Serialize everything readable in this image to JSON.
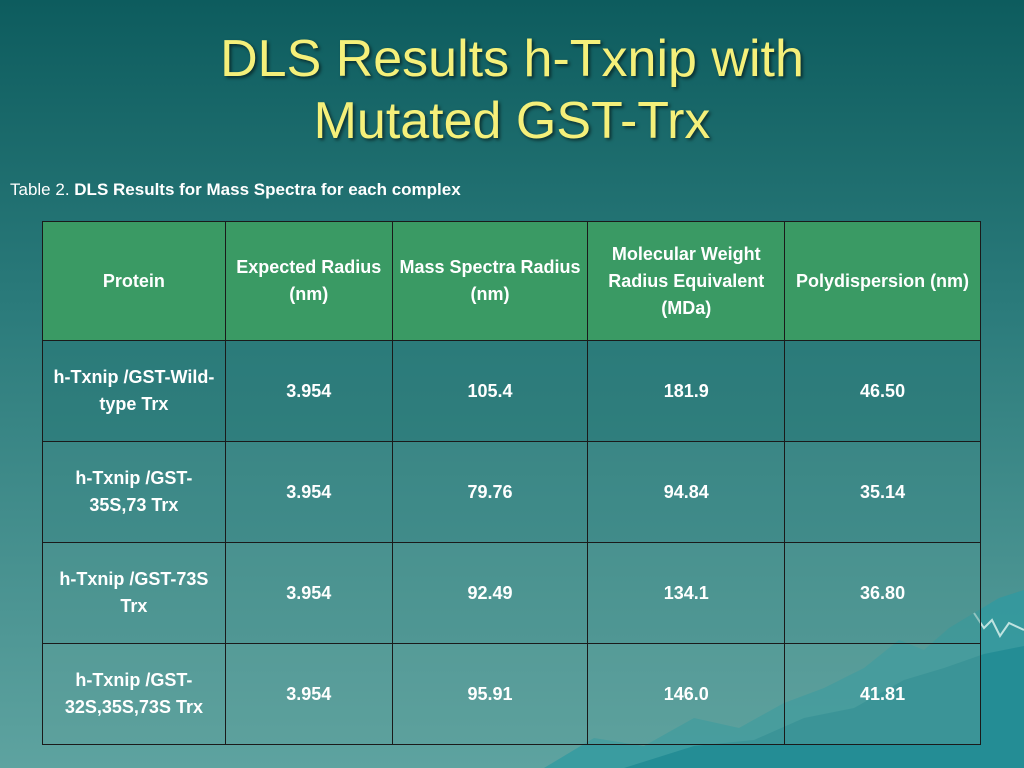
{
  "slide": {
    "title_line1": "DLS Results h-Txnip with",
    "title_line2": "Mutated GST-Trx",
    "caption_prefix": "Table 2.",
    "caption_bold": "DLS Results for Mass Spectra for each complex"
  },
  "table": {
    "headers": [
      "Protein",
      "Expected Radius (nm)",
      "Mass Spectra Radius (nm)",
      "Molecular Weight Radius Equivalent (MDa)",
      "Polydispersion (nm)"
    ],
    "rows": [
      [
        "h-Txnip /GST-Wild-type Trx",
        "3.954",
        "105.4",
        "181.9",
        "46.50"
      ],
      [
        "h-Txnip /GST-35S,73 Trx",
        "3.954",
        "79.76",
        "94.84",
        "35.14"
      ],
      [
        "h-Txnip /GST-73S Trx",
        "3.954",
        "92.49",
        "134.1",
        "36.80"
      ],
      [
        "h-Txnip /GST-32S,35S,73S Trx",
        "3.954",
        "95.91",
        "146.0",
        "41.81"
      ]
    ]
  },
  "colors": {
    "title": "#f5f07a",
    "header_fill": "#3a9a64"
  }
}
